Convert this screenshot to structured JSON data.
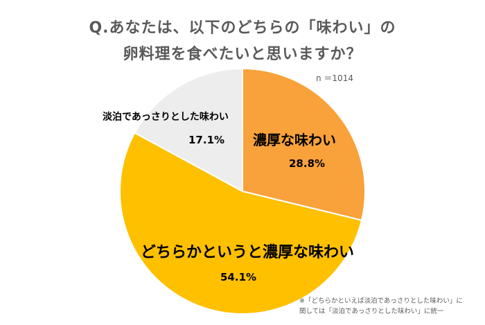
{
  "title": {
    "line1": "Q.あなたは、以下のどちらの「味わい」の",
    "line2": "卵料理を食べたいと思いますか？"
  },
  "sample_size": "n ＝1014",
  "footnote": {
    "line1": "※「どちらかといえば淡泊であっさりとした味わい」に",
    "line2": "関しては「淡泊であっさりとした味わい」に統一"
  },
  "chart_data": {
    "type": "pie",
    "title": "Q.あなたは、以下のどちらの「味わい」の卵料理を食べたいと思いますか？",
    "slices": [
      {
        "label": "濃厚な味わい",
        "value": 28.8,
        "value_label": "28.8%",
        "color": "#F9A13A"
      },
      {
        "label": "どちらかというと濃厚な味わい",
        "value": 54.1,
        "value_label": "54.1%",
        "color": "#FFC000"
      },
      {
        "label": "淡泊であっさりとした味わい",
        "value": 17.1,
        "value_label": "17.1%",
        "color": "#EDEDED"
      }
    ],
    "start": "12 o'clock",
    "direction": "clockwise"
  }
}
